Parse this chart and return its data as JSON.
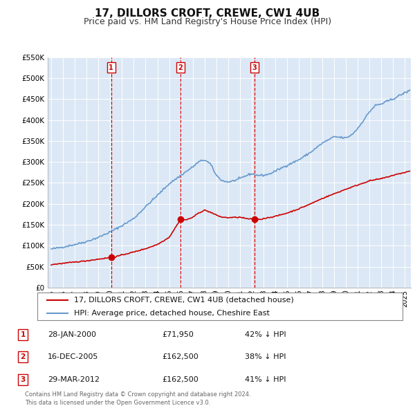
{
  "title": "17, DILLORS CROFT, CREWE, CW1 4UB",
  "subtitle": "Price paid vs. HM Land Registry's House Price Index (HPI)",
  "title_fontsize": 11,
  "subtitle_fontsize": 9,
  "background_color": "#ffffff",
  "plot_bg_color": "#dce8f5",
  "grid_color": "#ffffff",
  "ylim": [
    0,
    550000
  ],
  "yticks": [
    0,
    50000,
    100000,
    150000,
    200000,
    250000,
    300000,
    350000,
    400000,
    450000,
    500000,
    550000
  ],
  "ytick_labels": [
    "£0",
    "£50K",
    "£100K",
    "£150K",
    "£200K",
    "£250K",
    "£300K",
    "£350K",
    "£400K",
    "£450K",
    "£500K",
    "£550K"
  ],
  "xlim_start": 1994.7,
  "xlim_end": 2025.5,
  "xtick_years": [
    1995,
    1996,
    1997,
    1998,
    1999,
    2000,
    2001,
    2002,
    2003,
    2004,
    2005,
    2006,
    2007,
    2008,
    2009,
    2010,
    2011,
    2012,
    2013,
    2014,
    2015,
    2016,
    2017,
    2018,
    2019,
    2020,
    2021,
    2022,
    2023,
    2024,
    2025
  ],
  "sale_color": "#cc0000",
  "hpi_color": "#6699cc",
  "sale_linewidth": 1.2,
  "hpi_linewidth": 1.2,
  "marker_color": "#cc0000",
  "marker_size": 6,
  "vline_color": "#dd0000",
  "vline_style": "--",
  "annotations": [
    {
      "label": "1",
      "x": 2000.08,
      "y_sale": 71950
    },
    {
      "label": "2",
      "x": 2005.96,
      "y_sale": 162500
    },
    {
      "label": "3",
      "x": 2012.24,
      "y_sale": 162500
    }
  ],
  "legend_entries": [
    {
      "label": "17, DILLORS CROFT, CREWE, CW1 4UB (detached house)",
      "color": "#cc0000",
      "lw": 1.5
    },
    {
      "label": "HPI: Average price, detached house, Cheshire East",
      "color": "#6699cc",
      "lw": 1.5
    }
  ],
  "table_rows": [
    {
      "num": "1",
      "date": "28-JAN-2000",
      "price": "£71,950",
      "pct": "42% ↓ HPI"
    },
    {
      "num": "2",
      "date": "16-DEC-2005",
      "price": "£162,500",
      "pct": "38% ↓ HPI"
    },
    {
      "num": "3",
      "date": "29-MAR-2012",
      "price": "£162,500",
      "pct": "41% ↓ HPI"
    }
  ],
  "footer": "Contains HM Land Registry data © Crown copyright and database right 2024.\nThis data is licensed under the Open Government Licence v3.0.",
  "annotation_box_color": "#cc0000",
  "annotation_text_color": "#cc0000",
  "annotation_box_facecolor": "#ffffff"
}
